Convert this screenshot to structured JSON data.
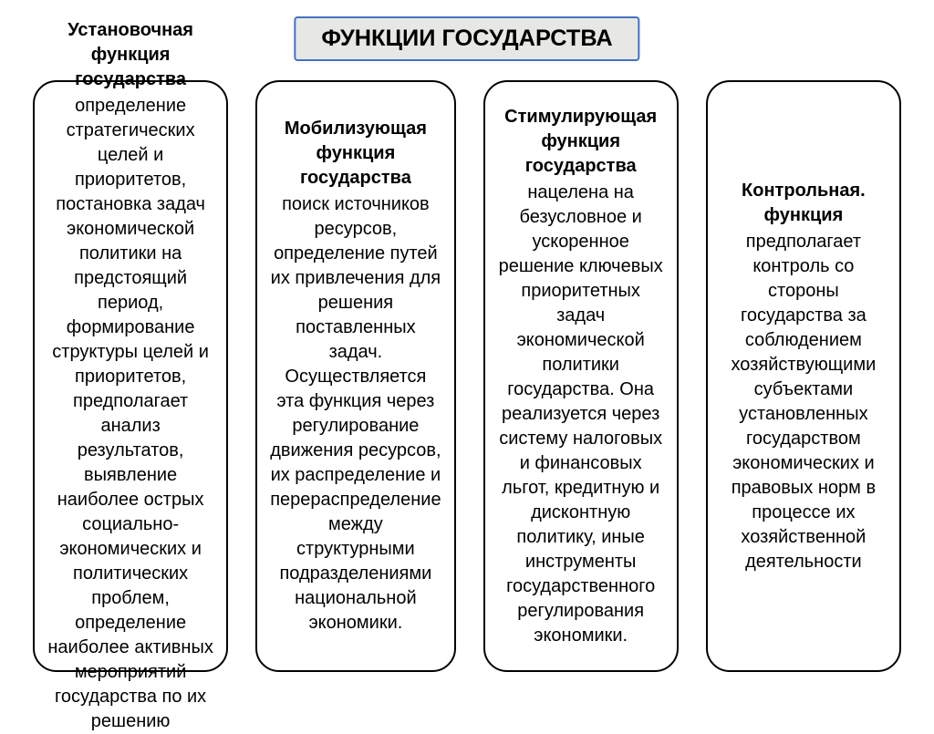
{
  "page": {
    "background_color": "#ffffff"
  },
  "title": {
    "text": "ФУНКЦИИ ГОСУДАРСТВА",
    "border_color": "#4472c4",
    "background_color": "#e7e7e4",
    "text_color": "#000000",
    "font_size_pt": 19
  },
  "cards": {
    "border_color": "#000000",
    "text_color": "#000000",
    "font_size_pt": 15,
    "items": [
      {
        "title": "Установочная функция государства",
        "body": "определение стратегических целей и приоритетов, постановка задач экономической политики на предстоящий период, формирование структуры целей и приоритетов, предполагает анализ результатов, выявление наиболее острых социально-экономических и политических проблем, определение наиболее активных мероприятий государства по их решению"
      },
      {
        "title": "Мобилизующая функция государства",
        "body": "поиск источников ресурсов, определение путей их привлечения для решения поставленных задач. Осуществляется эта функция через регулирование движения ресурсов, их распределение и перераспределение между структурными подразделениями национальной экономики."
      },
      {
        "title": "Стимулирующая функция государства",
        "body": "нацелена на безусловное и ускоренное решение ключевых приоритетных задач экономической политики государства. Она реализуется через систему налоговых и финансовых льгот, кредитную и дисконтную политику, иные инструменты государственного регулирования экономики."
      },
      {
        "title": "Контрольная. функция",
        "body": "предполагает контроль со стороны государства за соблюдением хозяйствующими субъектами установленных государством экономических и правовых норм в процессе их хозяйственной деятельности"
      }
    ]
  }
}
